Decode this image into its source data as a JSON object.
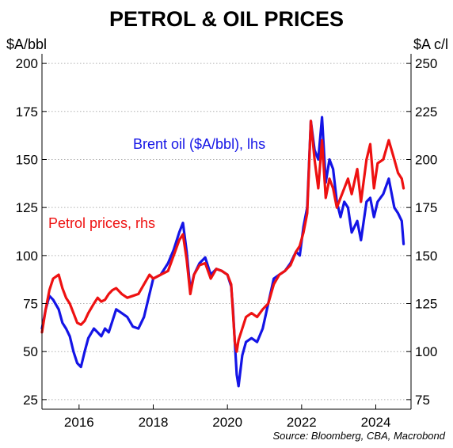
{
  "chart_data": {
    "type": "line",
    "title": "PETROL & OIL PRICES",
    "ylabel_left": "$A/bbl",
    "ylabel_right": "$A c/l",
    "ylim_left": [
      20,
      205
    ],
    "ylim_right": [
      70,
      255
    ],
    "yticks_left": [
      25,
      50,
      75,
      100,
      125,
      150,
      175,
      200
    ],
    "yticks_right": [
      75,
      100,
      125,
      150,
      175,
      200,
      225,
      250
    ],
    "xlim": [
      2015.0,
      2024.95
    ],
    "xticks": [
      2016,
      2018,
      2020,
      2022,
      2024
    ],
    "grid": true,
    "source": "Source: Bloomberg, CBA, Macrobond",
    "series": [
      {
        "name": "Brent oil ($A/bbl), lhs",
        "axis": "left",
        "color": "#1414e6",
        "x": [
          2015.0,
          2015.1,
          2015.2,
          2015.3,
          2015.45,
          2015.55,
          2015.65,
          2015.75,
          2015.85,
          2015.95,
          2016.05,
          2016.15,
          2016.25,
          2016.4,
          2016.5,
          2016.6,
          2016.7,
          2016.8,
          2016.9,
          2017.0,
          2017.15,
          2017.3,
          2017.45,
          2017.6,
          2017.75,
          2017.9,
          2018.0,
          2018.2,
          2018.4,
          2018.55,
          2018.7,
          2018.8,
          2018.9,
          2019.0,
          2019.1,
          2019.25,
          2019.4,
          2019.55,
          2019.7,
          2019.85,
          2020.0,
          2020.1,
          2020.15,
          2020.2,
          2020.25,
          2020.3,
          2020.4,
          2020.5,
          2020.65,
          2020.8,
          2020.95,
          2021.1,
          2021.25,
          2021.4,
          2021.55,
          2021.7,
          2021.85,
          2021.95,
          2022.05,
          2022.15,
          2022.25,
          2022.35,
          2022.45,
          2022.55,
          2022.65,
          2022.75,
          2022.85,
          2022.95,
          2023.05,
          2023.15,
          2023.25,
          2023.35,
          2023.5,
          2023.6,
          2023.75,
          2023.85,
          2023.95,
          2024.05,
          2024.2,
          2024.35,
          2024.5,
          2024.6,
          2024.7,
          2024.75
        ],
        "y": [
          62,
          72,
          79,
          77,
          72,
          65,
          62,
          58,
          50,
          44,
          42,
          50,
          57,
          62,
          60,
          58,
          62,
          60,
          66,
          72,
          70,
          68,
          63,
          62,
          68,
          80,
          88,
          90,
          96,
          103,
          112,
          117,
          102,
          82,
          90,
          96,
          99,
          90,
          93,
          92,
          90,
          84,
          72,
          55,
          38,
          32,
          48,
          55,
          57,
          55,
          62,
          75,
          88,
          90,
          92,
          96,
          102,
          100,
          115,
          125,
          170,
          155,
          150,
          172,
          138,
          150,
          145,
          128,
          120,
          128,
          125,
          112,
          118,
          108,
          128,
          130,
          120,
          128,
          132,
          140,
          125,
          122,
          118,
          106
        ]
      },
      {
        "name": "Petrol prices, rhs",
        "axis": "right",
        "color": "#ee1111",
        "x": [
          2015.0,
          2015.1,
          2015.2,
          2015.3,
          2015.45,
          2015.55,
          2015.65,
          2015.75,
          2015.85,
          2015.95,
          2016.05,
          2016.15,
          2016.25,
          2016.4,
          2016.5,
          2016.6,
          2016.7,
          2016.8,
          2016.9,
          2017.0,
          2017.15,
          2017.3,
          2017.45,
          2017.6,
          2017.75,
          2017.9,
          2018.0,
          2018.2,
          2018.4,
          2018.55,
          2018.7,
          2018.8,
          2018.9,
          2019.0,
          2019.1,
          2019.25,
          2019.4,
          2019.55,
          2019.7,
          2019.85,
          2020.0,
          2020.1,
          2020.15,
          2020.2,
          2020.25,
          2020.3,
          2020.4,
          2020.5,
          2020.65,
          2020.8,
          2020.95,
          2021.1,
          2021.25,
          2021.4,
          2021.55,
          2021.7,
          2021.85,
          2021.95,
          2022.05,
          2022.15,
          2022.25,
          2022.35,
          2022.45,
          2022.55,
          2022.65,
          2022.75,
          2022.85,
          2022.95,
          2023.05,
          2023.15,
          2023.25,
          2023.35,
          2023.5,
          2023.6,
          2023.75,
          2023.85,
          2023.95,
          2024.05,
          2024.2,
          2024.35,
          2024.5,
          2024.6,
          2024.7,
          2024.75
        ],
        "y": [
          110,
          122,
          132,
          138,
          140,
          133,
          128,
          125,
          120,
          115,
          114,
          116,
          120,
          125,
          128,
          126,
          127,
          130,
          132,
          133,
          130,
          128,
          129,
          130,
          135,
          140,
          138,
          140,
          142,
          150,
          158,
          161,
          148,
          130,
          140,
          145,
          146,
          138,
          143,
          142,
          140,
          135,
          120,
          105,
          100,
          106,
          112,
          118,
          120,
          118,
          122,
          125,
          135,
          140,
          142,
          145,
          152,
          155,
          162,
          172,
          220,
          200,
          185,
          210,
          180,
          190,
          185,
          175,
          180,
          185,
          190,
          182,
          195,
          178,
          200,
          208,
          185,
          198,
          200,
          210,
          200,
          193,
          190,
          185
        ]
      }
    ],
    "annotations": [
      {
        "text": "Brent oil ($A/bbl), lhs",
        "color": "#1414e6"
      },
      {
        "text": "Petrol prices, rhs",
        "color": "#ee1111"
      }
    ]
  }
}
